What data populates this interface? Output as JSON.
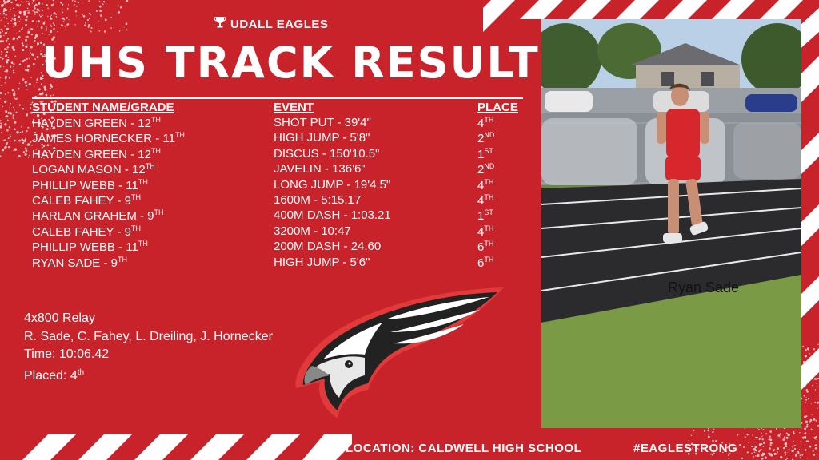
{
  "brand": {
    "icon": "trophy-icon",
    "name": "UDALL EAGLES"
  },
  "title": "UHS TRACK RESULTS",
  "columns": {
    "name": "STUDENT NAME/GRADE",
    "event": "EVENT",
    "place": "PLACE"
  },
  "results": [
    {
      "name": "HAYDEN GREEN - 12",
      "grade_suffix": "TH",
      "event": "SHOT PUT - 39'4\"",
      "place": "4",
      "place_suffix": "TH"
    },
    {
      "name": "JAMES HORNECKER - 11",
      "grade_suffix": "TH",
      "event": "HIGH JUMP - 5'8\"",
      "place": "2",
      "place_suffix": "ND"
    },
    {
      "name": " HAYDEN GREEN - 12",
      "grade_suffix": "TH",
      "event": "DISCUS - 150'10.5\"",
      "place": "1",
      "place_suffix": "ST"
    },
    {
      "name": "LOGAN MASON - 12",
      "grade_suffix": "TH",
      "event": "JAVELIN - 136'6\"",
      "place": "2",
      "place_suffix": "ND"
    },
    {
      "name": "PHILLIP WEBB - 11",
      "grade_suffix": "TH",
      "event": "LONG JUMP - 19'4.5\"",
      "place": "4",
      "place_suffix": "TH"
    },
    {
      "name": "CALEB FAHEY - 9",
      "grade_suffix": "TH",
      "event": "1600M - 5:15.17",
      "place": "4",
      "place_suffix": "TH"
    },
    {
      "name": "HARLAN GRAHEM - 9",
      "grade_suffix": "TH",
      "event": "400M DASH - 1:03.21",
      "place": "1",
      "place_suffix": "ST"
    },
    {
      "name": "CALEB FAHEY - 9",
      "grade_suffix": "TH",
      "event": "3200M - 10:47",
      "place": "4",
      "place_suffix": "TH"
    },
    {
      "name": "PHILLIP WEBB - 11",
      "grade_suffix": "TH",
      "event": "200M DASH - 24.60",
      "place": "6",
      "place_suffix": "TH"
    },
    {
      "name": "RYAN SADE - 9",
      "grade_suffix": "TH",
      "event": "HIGH JUMP - 5'6\"",
      "place": "6",
      "place_suffix": "TH"
    }
  ],
  "relay": {
    "title": "4x800 Relay",
    "team": "R. Sade, C. Fahey, L. Dreiling, J. Hornecker",
    "time": "Time: 10:06.42",
    "placed": "Placed: 4",
    "placed_suffix": "th"
  },
  "photo": {
    "caption": "Ryan Sade"
  },
  "footer": {
    "location": "LOCATION: CALDWELL HIGH SCHOOL",
    "hashtag": "#EAGLESTRONG"
  },
  "colors": {
    "background": "#c8222a",
    "stripe": "#ffffff",
    "text": "#ffffff"
  }
}
